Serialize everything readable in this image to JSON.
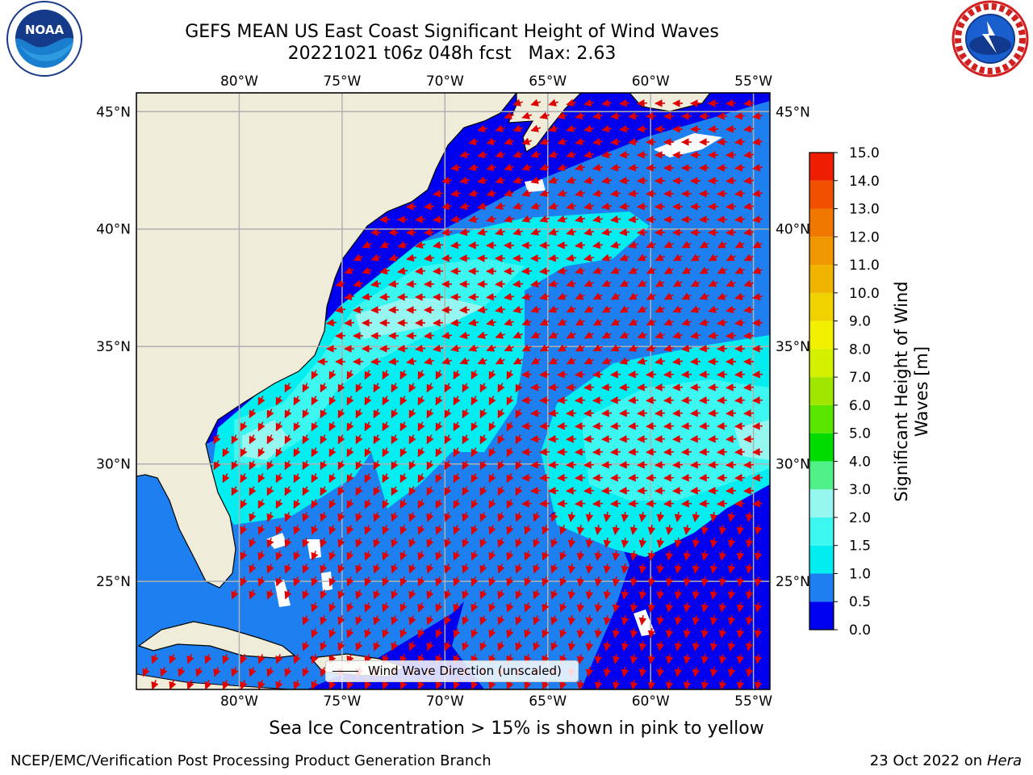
{
  "header": {
    "title_line1": "GEFS MEAN US East Coast Significant Height of Wind Waves",
    "title_line2": "20221021 t06z 048h fcst   Max: 2.63"
  },
  "logos": {
    "left": {
      "name": "noaa-logo",
      "text": "NOAA",
      "ring_text": "NATIONAL OCEANIC AND ATMOSPHERIC ADMINISTRATION · U.S. DEPARTMENT OF COMMERCE"
    },
    "right": {
      "name": "nws-logo",
      "ring_text": "NATIONAL WEATHER SERVICE"
    }
  },
  "map": {
    "lon_range": [
      -85,
      -54.2
    ],
    "lat_range": [
      20.4,
      45.8
    ],
    "lon_labels": [
      "80°W",
      "75°W",
      "70°W",
      "65°W",
      "60°W",
      "55°W"
    ],
    "lat_labels": [
      "45°N",
      "40°N",
      "35°N",
      "30°N",
      "25°N"
    ],
    "colors": {
      "land": "#efedd9",
      "grid": "#b0b0b0",
      "arrow": "#e00000",
      "coast": "#000000"
    },
    "legend_label": "Wind Wave Direction (unscaled)"
  },
  "colorbar": {
    "label": "Significant Height of Wind Waves [m]",
    "ticks": [
      "0.0",
      "0.5",
      "1.0",
      "1.5",
      "2.0",
      "3.0",
      "4.0",
      "5.0",
      "6.0",
      "7.0",
      "8.0",
      "9.0",
      "10.0",
      "11.0",
      "12.0",
      "13.0",
      "14.0",
      "15.0"
    ],
    "colors": [
      "#0000f0",
      "#1e7ff0",
      "#00eef0",
      "#3cf6f0",
      "#96f6f0",
      "#50f088",
      "#00dc00",
      "#5ae600",
      "#a0e600",
      "#d2f000",
      "#f0f000",
      "#f0d200",
      "#f0b400",
      "#f09600",
      "#f07800",
      "#f05000",
      "#f01e00"
    ]
  },
  "caption": "Sea Ice Concentration > 15% is shown in pink to yellow",
  "footer": {
    "left": "NCEP/EMC/Verification Post Processing Product Generation Branch",
    "right_date": "23 Oct 2022 on ",
    "right_machine": "Hera"
  }
}
